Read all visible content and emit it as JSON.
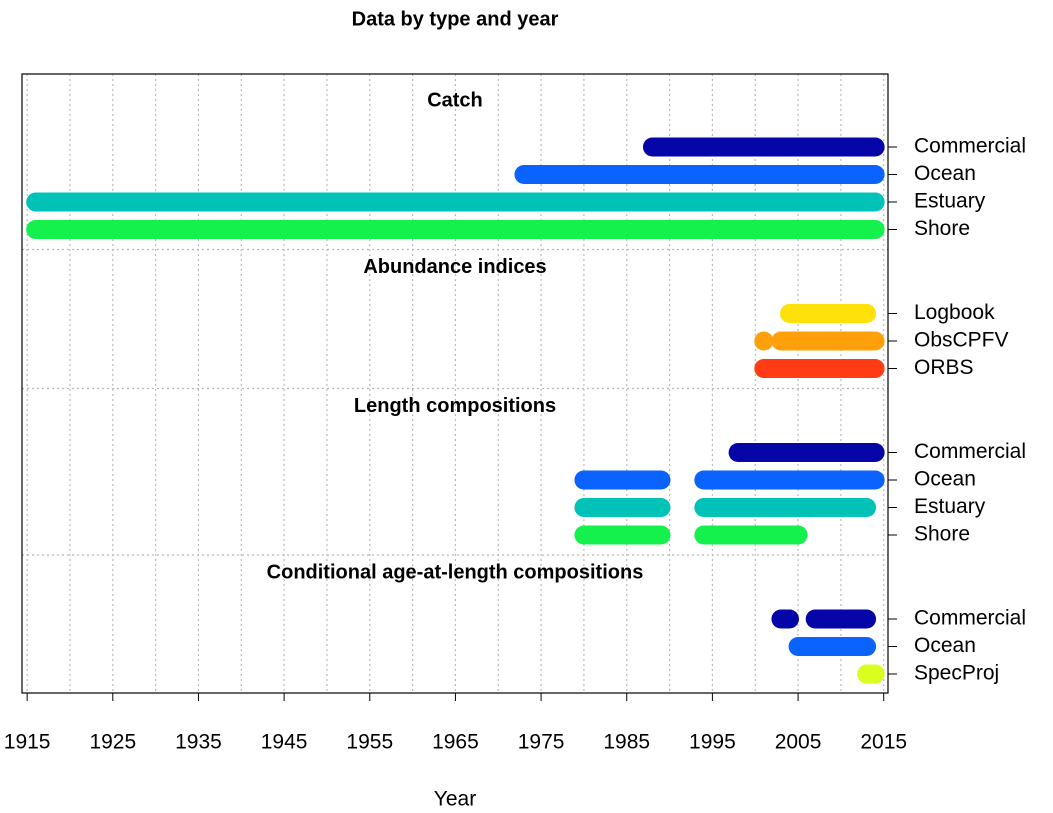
{
  "chart_data": {
    "type": "timeline",
    "title": "Data by type and year",
    "xlabel": "Year",
    "xlim": [
      1914.4,
      2015.5
    ],
    "xticks": [
      1915,
      1925,
      1935,
      1945,
      1955,
      1965,
      1975,
      1985,
      1995,
      2005,
      2015
    ],
    "xgrid": [
      1915,
      1920,
      1925,
      1930,
      1935,
      1940,
      1945,
      1950,
      1955,
      1960,
      1965,
      1970,
      1975,
      1980,
      1985,
      1990,
      1995,
      2000,
      2005,
      2010,
      2015
    ],
    "grid": true,
    "groups": [
      {
        "name": "Catch",
        "series": [
          {
            "name": "Commercial",
            "color": "#0606a8",
            "ranges": [
              [
                1988,
                2014
              ]
            ]
          },
          {
            "name": "Ocean",
            "color": "#0a62ff",
            "ranges": [
              [
                1973,
                2014
              ]
            ]
          },
          {
            "name": "Estuary",
            "color": "#00c2b6",
            "ranges": [
              [
                1916,
                2014
              ]
            ]
          },
          {
            "name": "Shore",
            "color": "#14f04c",
            "ranges": [
              [
                1916,
                2014
              ]
            ]
          }
        ]
      },
      {
        "name": "Abundance indices",
        "series": [
          {
            "name": "Logbook",
            "color": "#ffe10a",
            "ranges": [
              [
                2004,
                2013
              ]
            ]
          },
          {
            "name": "ObsCPFV",
            "color": "#ffa00a",
            "ranges": [
              [
                2001,
                2001
              ],
              [
                2003,
                2014
              ]
            ]
          },
          {
            "name": "ORBS",
            "color": "#ff3c14",
            "ranges": [
              [
                2001,
                2014
              ]
            ]
          }
        ]
      },
      {
        "name": "Length compositions",
        "series": [
          {
            "name": "Commercial",
            "color": "#0606a8",
            "ranges": [
              [
                1998,
                2014
              ]
            ]
          },
          {
            "name": "Ocean",
            "color": "#0a62ff",
            "ranges": [
              [
                1980,
                1989
              ],
              [
                1994,
                2014
              ]
            ]
          },
          {
            "name": "Estuary",
            "color": "#00c2b6",
            "ranges": [
              [
                1980,
                1989
              ],
              [
                1994,
                2013
              ]
            ]
          },
          {
            "name": "Shore",
            "color": "#14f04c",
            "ranges": [
              [
                1980,
                1989
              ],
              [
                1994,
                2005
              ]
            ]
          }
        ]
      },
      {
        "name": "Conditional age-at-length compositions",
        "series": [
          {
            "name": "Commercial",
            "color": "#0606a8",
            "ranges": [
              [
                2003,
                2004
              ],
              [
                2007,
                2013
              ]
            ]
          },
          {
            "name": "Ocean",
            "color": "#0a62ff",
            "ranges": [
              [
                2005,
                2013
              ]
            ]
          },
          {
            "name": "SpecProj",
            "color": "#d8ff1e",
            "ranges": [
              [
                2013,
                2014
              ]
            ]
          }
        ]
      }
    ]
  }
}
